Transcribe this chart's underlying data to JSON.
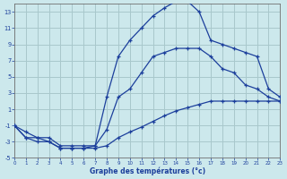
{
  "xlabel": "Graphe des températures (°c)",
  "bg_color": "#cce8ec",
  "line_color": "#1c3f9c",
  "grid_color": "#a8c8cc",
  "xlim": [
    0,
    23
  ],
  "ylim": [
    -5,
    14
  ],
  "xticks": [
    0,
    1,
    2,
    3,
    4,
    5,
    6,
    7,
    8,
    9,
    10,
    11,
    12,
    13,
    14,
    15,
    16,
    17,
    18,
    19,
    20,
    21,
    22,
    23
  ],
  "yticks": [
    -5,
    -3,
    -1,
    1,
    3,
    5,
    7,
    9,
    11,
    13
  ],
  "hours": [
    0,
    1,
    2,
    3,
    4,
    5,
    6,
    7,
    8,
    9,
    10,
    11,
    12,
    13,
    14,
    15,
    16,
    17,
    18,
    19,
    20,
    21,
    22,
    23
  ],
  "line_high": [
    -1.0,
    -2.5,
    -2.5,
    -3.0,
    -3.8,
    -3.8,
    -3.8,
    -3.5,
    2.5,
    7.5,
    9.5,
    11.0,
    12.5,
    13.5,
    14.3,
    14.3,
    13.0,
    9.5,
    9.0,
    8.5,
    8.0,
    7.5,
    3.5,
    2.5
  ],
  "line_low": [
    -1.0,
    -2.5,
    -3.0,
    -3.0,
    -3.8,
    -3.8,
    -3.8,
    -3.8,
    -3.5,
    -2.5,
    -1.8,
    -1.2,
    -0.5,
    0.2,
    0.8,
    1.2,
    1.6,
    2.0,
    2.0,
    2.0,
    2.0,
    2.0,
    2.0,
    2.0
  ],
  "line_diag": [
    -1.0,
    -1.8,
    -2.5,
    -2.5,
    -3.5,
    -3.5,
    -3.5,
    -3.5,
    -1.5,
    2.5,
    3.5,
    5.5,
    7.5,
    8.0,
    8.5,
    8.5,
    8.5,
    7.5,
    6.0,
    5.5,
    4.0,
    3.5,
    2.5,
    2.0
  ]
}
